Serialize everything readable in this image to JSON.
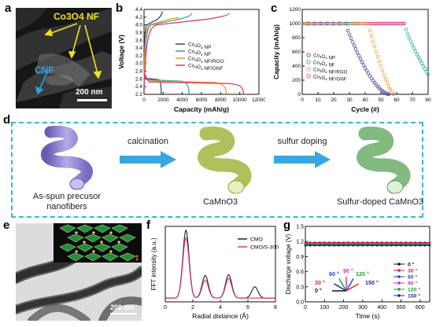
{
  "figure": {
    "panel_labels": {
      "a": "a",
      "b": "b",
      "c": "c",
      "d": "d",
      "e": "e",
      "f": "f",
      "g": "g"
    }
  },
  "panel_a": {
    "label_nf": "Co3O4 NF",
    "label_cnf": "CNF",
    "scale_bar": "200 nm"
  },
  "panel_b": {
    "ylabel": "Voltage (V)",
    "xlabel": "Capacity (mAh/g)",
    "xticks": [
      "0",
      "2000",
      "4000",
      "6000",
      "8000",
      "10000",
      "12000"
    ],
    "yticks": [
      "2.2",
      "2.4",
      "2.6",
      "2.8",
      "3.0",
      "3.2",
      "3.4",
      "3.6",
      "3.8",
      "4.0",
      "4.2",
      "4.4"
    ],
    "legend": [
      "Co3O4 NP",
      "Co3O4 NF",
      "Co3O4 NF/RGO",
      "Co3O4 NF/GNF"
    ],
    "colors": [
      "#3a3f8f",
      "#2aa89a",
      "#e89a2a",
      "#d63a7a"
    ]
  },
  "panel_c": {
    "ylabel": "Capacity (mAh/g)",
    "xlabel": "Cycle (#)",
    "xticks": [
      "0",
      "10",
      "20",
      "30",
      "40",
      "50",
      "60",
      "70",
      "80"
    ],
    "yticks": [
      "0",
      "200",
      "400",
      "600",
      "800",
      "1000",
      "1200"
    ],
    "legend": [
      "Co3O4 NP",
      "Co3O4 NF",
      "Co3O4 NF/RGO",
      "Co3O4 NF/GNF"
    ],
    "colors": [
      "#4d3f9a",
      "#2aa89a",
      "#e8a02a",
      "#e0508a"
    ]
  },
  "panel_d": {
    "step1": "calcination",
    "step2": "sulfur doping",
    "caption1_line1": "As-spun precusor",
    "caption1_line2": "nanofibers",
    "caption2": "CaMnO3",
    "caption3": "Sulfur-doped CaMnO3"
  },
  "panel_e": {
    "scale_bar": "200 nm"
  },
  "panel_f": {
    "ylabel": "FFT intensity (a.u.)",
    "xlabel": "Radial distance (Å)",
    "xticks": [
      "0",
      "2",
      "4",
      "6",
      "8"
    ],
    "legend": [
      "CMO",
      "CMO/S-300"
    ],
    "colors": [
      "#222222",
      "#d23a6a"
    ]
  },
  "panel_g": {
    "ylabel": "Discharge voltage (V)",
    "xlabel": "Time (s)",
    "yticks": [
      "0.0",
      "0.3",
      "0.6",
      "0.9",
      "1.2",
      "1.5"
    ],
    "xticks": [
      "0",
      "100",
      "200",
      "300",
      "400",
      "500",
      "600"
    ],
    "legend": [
      "0 °",
      "30 °",
      "60 °",
      "90 °",
      "120 °",
      "150 °"
    ],
    "colors": [
      "#111111",
      "#e0202a",
      "#2a3ad0",
      "#d02ad0",
      "#1aa02a",
      "#1a2a8a"
    ],
    "angle_labels": [
      "60 °",
      "90 °",
      "120 °",
      "30 °",
      "150 °",
      "0 °"
    ]
  },
  "chart_data": [
    {
      "type": "line",
      "panel": "b",
      "xlabel": "Capacity (mAh/g)",
      "ylabel": "Voltage (V)",
      "xlim": [
        0,
        12000
      ],
      "ylim": [
        2.2,
        4.4
      ],
      "series": [
        {
          "name": "Co3O4 NP",
          "discharge_end_capacity": 1800,
          "charge_end_capacity": 1900
        },
        {
          "name": "Co3O4 NF",
          "discharge_end_capacity": 4700,
          "charge_end_capacity": 5000
        },
        {
          "name": "Co3O4 NF/RGO",
          "discharge_end_capacity": 8600,
          "charge_end_capacity": 3600
        },
        {
          "name": "Co3O4 NF/GNF",
          "discharge_end_capacity": 10400,
          "charge_end_capacity": 8900
        }
      ]
    },
    {
      "type": "scatter",
      "panel": "c",
      "xlabel": "Cycle (#)",
      "ylabel": "Capacity (mAh/g)",
      "xlim": [
        0,
        80
      ],
      "ylim": [
        0,
        1200
      ],
      "series": [
        {
          "name": "Co3O4 NP",
          "stable_capacity": 1000,
          "stable_until_cycle": 29,
          "fade_to_zero_cycle": 55
        },
        {
          "name": "Co3O4 NF",
          "stable_capacity": 1000,
          "stable_until_cycle": 37,
          "fade_to_zero_cycle": 38
        },
        {
          "name": "Co3O4 NF/RGO",
          "stable_capacity": 1000,
          "stable_until_cycle": 43,
          "fade_to_zero_cycle": 58
        },
        {
          "name": "Co3O4 NF/GNF",
          "stable_capacity": 1000,
          "stable_until_cycle": 65,
          "end_capacity_cycle_80": 280
        }
      ]
    },
    {
      "type": "line",
      "panel": "f",
      "xlabel": "Radial distance (Å)",
      "ylabel": "FFT intensity (a.u.)",
      "xlim": [
        0,
        8
      ],
      "series": [
        {
          "name": "CMO",
          "peaks": [
            {
              "x": 1.5,
              "y": 9.0
            },
            {
              "x": 2.9,
              "y": 3.0
            },
            {
              "x": 4.6,
              "y": 3.1
            },
            {
              "x": 6.5,
              "y": 1.5
            }
          ]
        },
        {
          "name": "CMO/S-300",
          "peaks": [
            {
              "x": 1.5,
              "y": 8.0
            },
            {
              "x": 2.9,
              "y": 2.4
            },
            {
              "x": 4.6,
              "y": 2.6
            }
          ]
        }
      ]
    },
    {
      "type": "line",
      "panel": "g",
      "xlabel": "Time (s)",
      "ylabel": "Discharge voltage (V)",
      "xlim": [
        0,
        650
      ],
      "ylim": [
        0.0,
        1.5
      ],
      "series": [
        {
          "name": "0 °",
          "value": 1.13
        },
        {
          "name": "30 °",
          "value": 1.18
        },
        {
          "name": "60 °",
          "value": 1.16
        },
        {
          "name": "90 °",
          "value": 1.15
        },
        {
          "name": "120 °",
          "value": 1.14
        },
        {
          "name": "150 °",
          "value": 1.12
        }
      ]
    }
  ]
}
